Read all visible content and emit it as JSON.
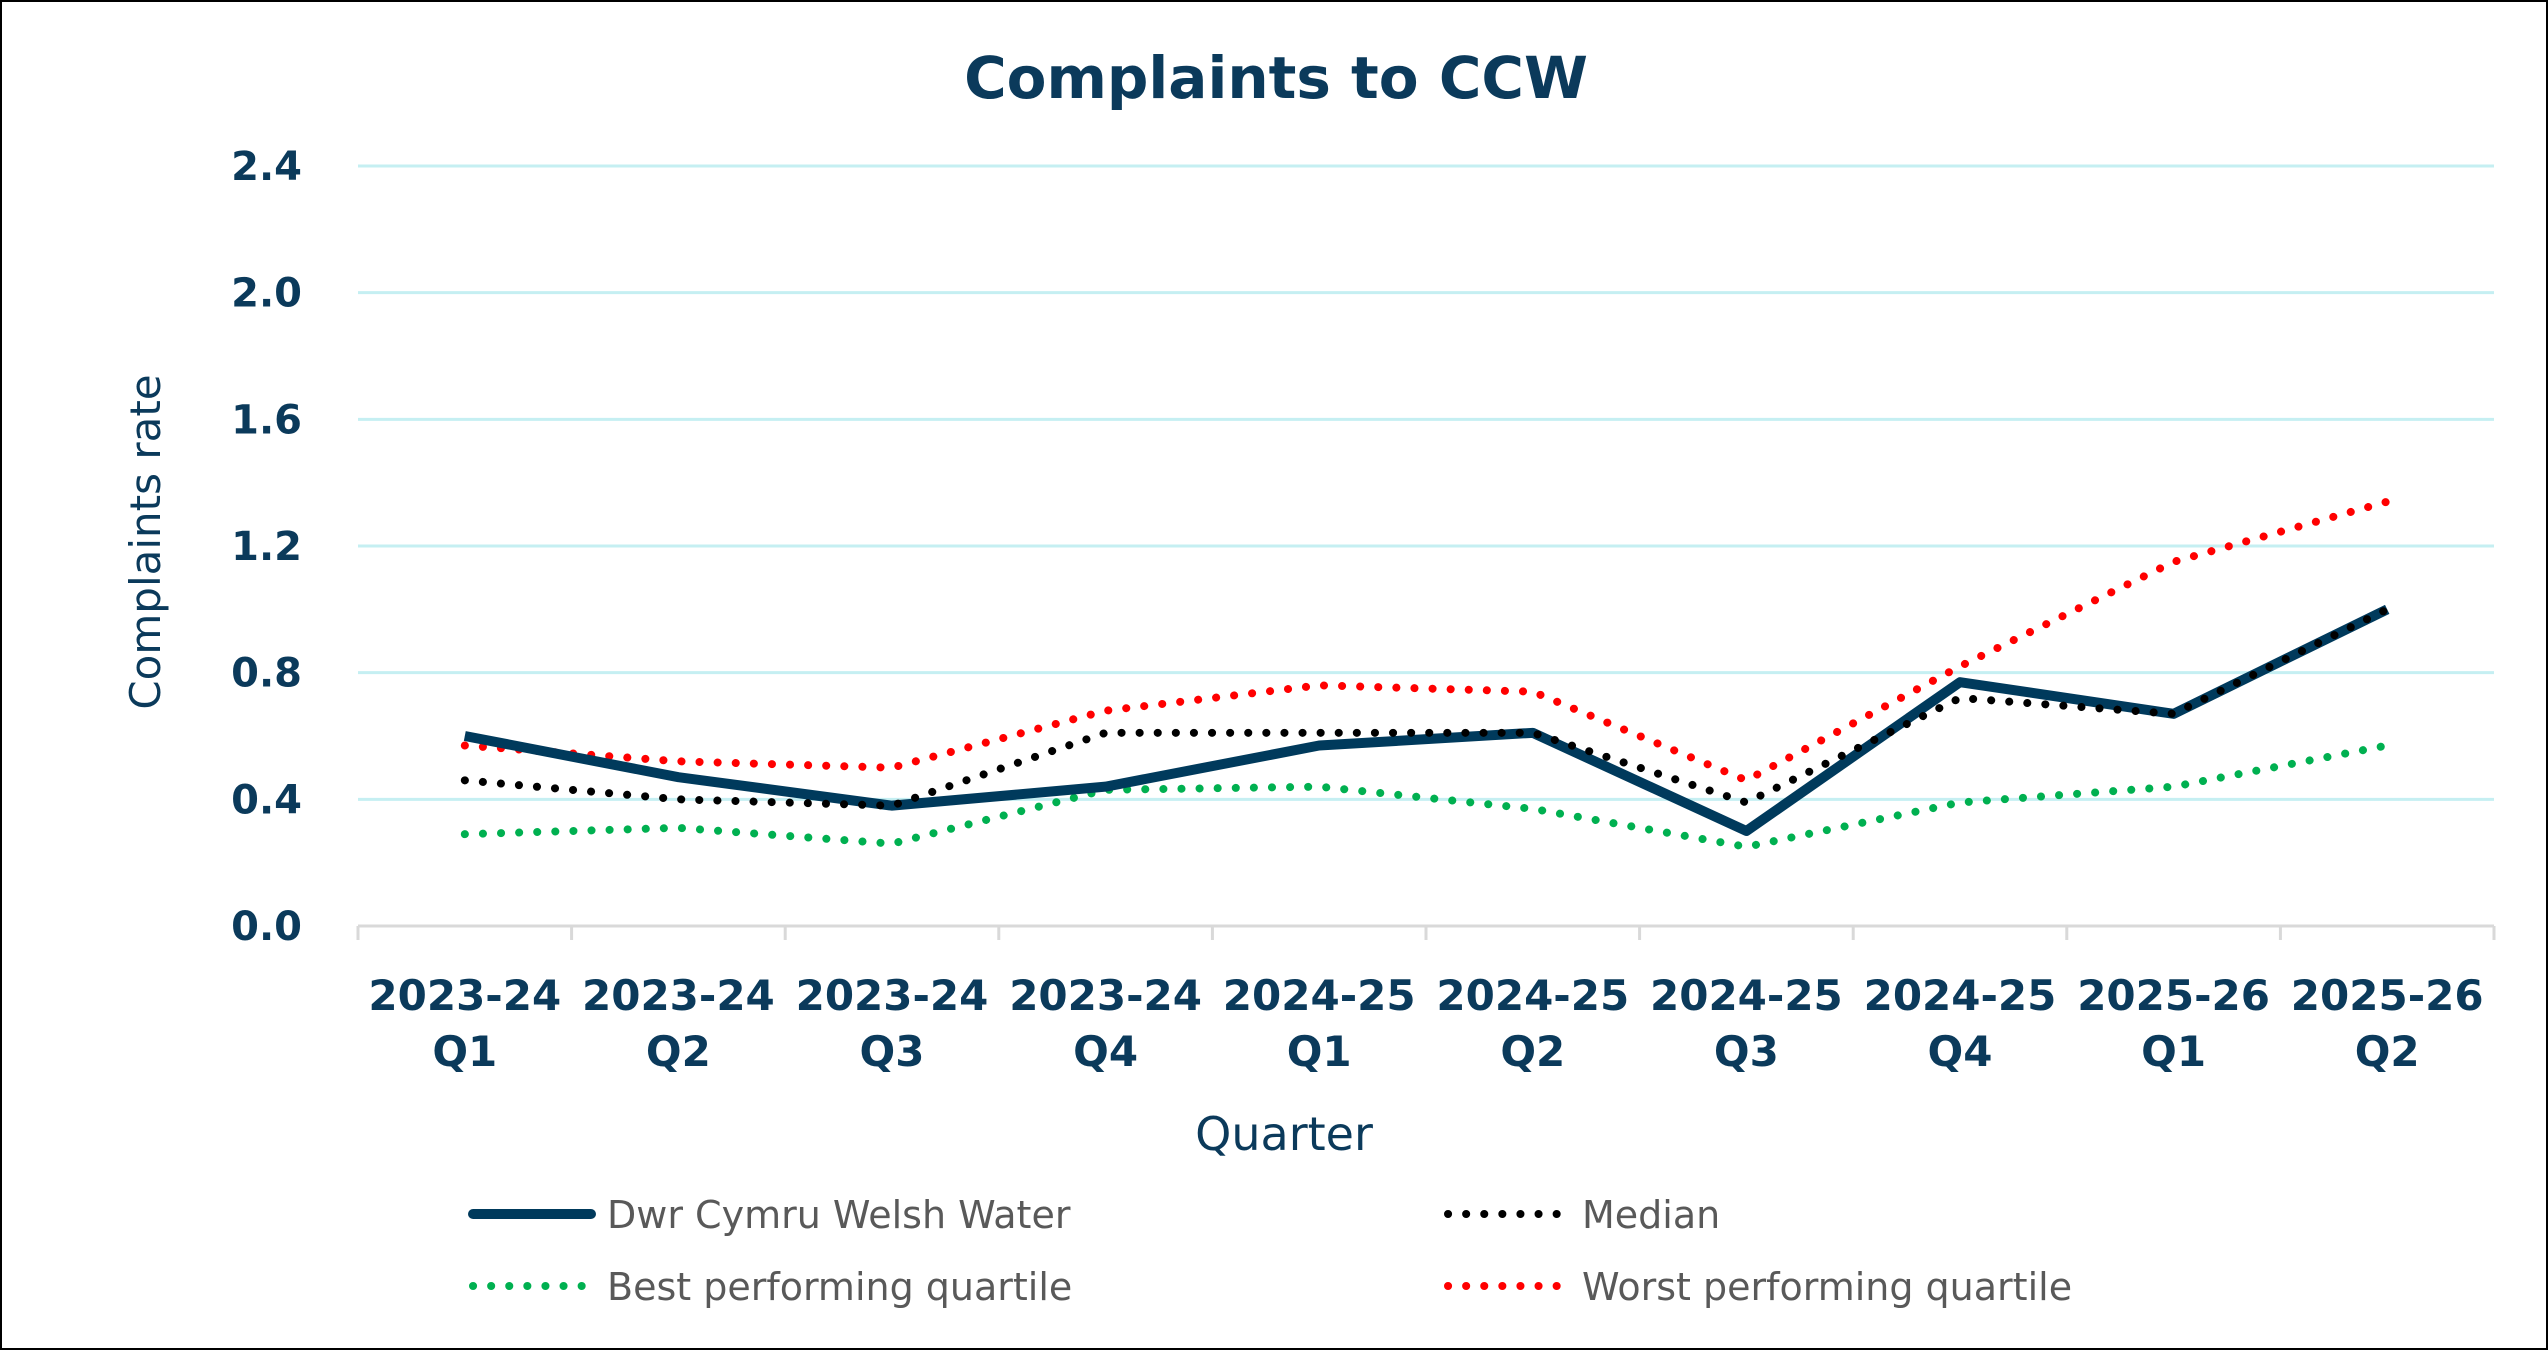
{
  "chart_data": {
    "type": "line",
    "title": "Complaints to CCW",
    "xlabel": "Quarter",
    "ylabel": "Complaints rate",
    "ylim": [
      0,
      2.4
    ],
    "yticks": [
      "0.0",
      "0.4",
      "0.8",
      "1.2",
      "1.6",
      "2.0",
      "2.4"
    ],
    "grid": true,
    "legend_position": "bottom",
    "categories": [
      [
        "2023-24",
        "Q1"
      ],
      [
        "2023-24",
        "Q2"
      ],
      [
        "2023-24",
        "Q3"
      ],
      [
        "2023-24",
        "Q4"
      ],
      [
        "2024-25",
        "Q1"
      ],
      [
        "2024-25",
        "Q2"
      ],
      [
        "2024-25",
        "Q3"
      ],
      [
        "2024-25",
        "Q4"
      ],
      [
        "2025-26",
        "Q1"
      ],
      [
        "2025-26",
        "Q2"
      ]
    ],
    "series": [
      {
        "name": "Dwr Cymru Welsh Water",
        "color": "#003a5c",
        "style": "solid",
        "values": [
          0.6,
          0.47,
          0.38,
          0.44,
          0.57,
          0.61,
          0.3,
          0.77,
          0.67,
          1.0
        ]
      },
      {
        "name": "Median",
        "color": "#000000",
        "style": "dotted",
        "values": [
          0.46,
          0.4,
          0.38,
          0.61,
          0.61,
          0.61,
          0.39,
          0.72,
          0.67,
          1.0
        ]
      },
      {
        "name": "Best performing quartile",
        "color": "#00b050",
        "style": "dotted",
        "values": [
          0.29,
          0.31,
          0.26,
          0.43,
          0.44,
          0.37,
          0.25,
          0.39,
          0.44,
          0.57
        ]
      },
      {
        "name": "Worst performing quartile",
        "color": "#ff0000",
        "style": "dotted",
        "values": [
          0.57,
          0.52,
          0.5,
          0.68,
          0.76,
          0.74,
          0.46,
          0.82,
          1.15,
          1.34
        ]
      }
    ],
    "colors": {
      "text": "#0b3a5b",
      "grid": "#c5eff2",
      "axis": "#d9d9d9",
      "legend_text": "#595959"
    }
  }
}
